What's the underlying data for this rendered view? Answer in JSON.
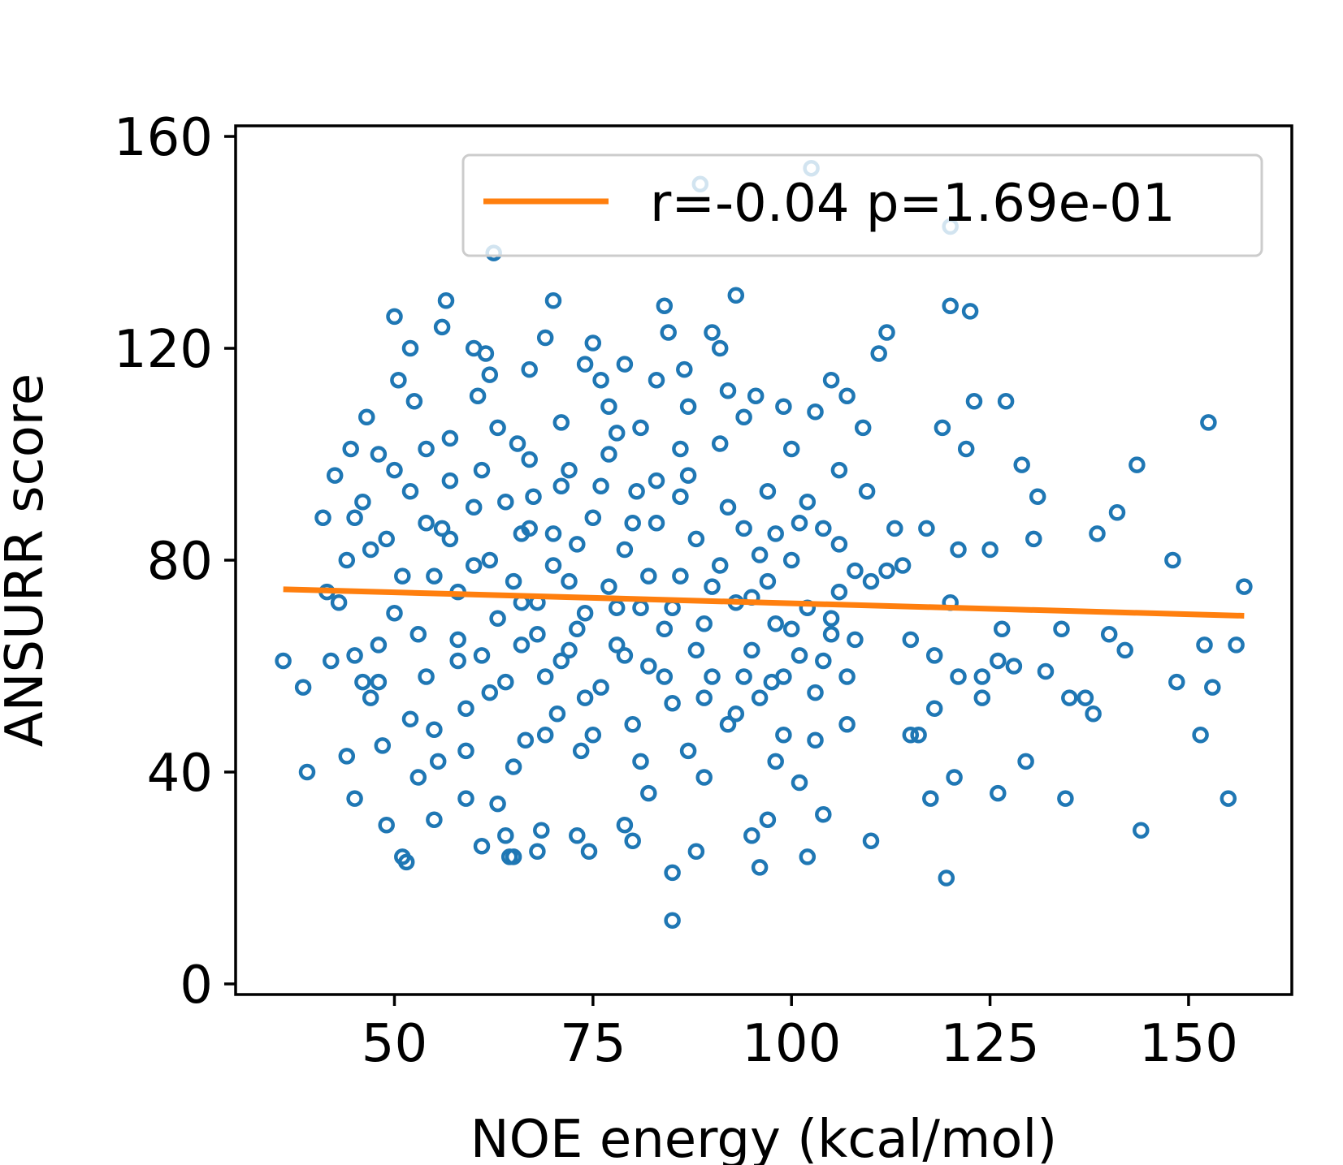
{
  "chart_data": {
    "type": "scatter",
    "title": "",
    "xlabel": "NOE energy (kcal/mol)",
    "ylabel": "ANSURR score",
    "xlim": [
      30,
      163
    ],
    "ylim": [
      -2,
      162
    ],
    "xticks": [
      50,
      75,
      100,
      125,
      150
    ],
    "yticks": [
      0,
      40,
      80,
      120,
      160
    ],
    "grid": false,
    "legend": {
      "placement": "top-right",
      "entries": [
        "r=-0.04 p=1.69e-01"
      ]
    },
    "marker_color": "#1f77b4",
    "line_color": "#ff7f0e",
    "fit_line": {
      "x": [
        36,
        157
      ],
      "y": [
        74.5,
        69.5
      ]
    },
    "points": [
      [
        36,
        61
      ],
      [
        38.5,
        56
      ],
      [
        39,
        40
      ],
      [
        41.5,
        74
      ],
      [
        42,
        61
      ],
      [
        41,
        88
      ],
      [
        42.5,
        96
      ],
      [
        44,
        43
      ],
      [
        45,
        35
      ],
      [
        45,
        62
      ],
      [
        46,
        57
      ],
      [
        44.5,
        101
      ],
      [
        46.5,
        107
      ],
      [
        48,
        100
      ],
      [
        47,
        82
      ],
      [
        48,
        64
      ],
      [
        49,
        30
      ],
      [
        50,
        126
      ],
      [
        50.5,
        114
      ],
      [
        51,
        24
      ],
      [
        51.5,
        23
      ],
      [
        52,
        120
      ],
      [
        52.5,
        110
      ],
      [
        53,
        39
      ],
      [
        54,
        101
      ],
      [
        55,
        31
      ],
      [
        55.5,
        42
      ],
      [
        56,
        124
      ],
      [
        56.5,
        129
      ],
      [
        57,
        95
      ],
      [
        58,
        65
      ],
      [
        59,
        35
      ],
      [
        60,
        120
      ],
      [
        60.5,
        111
      ],
      [
        61,
        26
      ],
      [
        61.5,
        119
      ],
      [
        62,
        115
      ],
      [
        62.5,
        138
      ],
      [
        63,
        34
      ],
      [
        64,
        28
      ],
      [
        64.5,
        24
      ],
      [
        65,
        24
      ],
      [
        65.5,
        102
      ],
      [
        66,
        85
      ],
      [
        67,
        116
      ],
      [
        67.5,
        92
      ],
      [
        68,
        25
      ],
      [
        68.5,
        29
      ],
      [
        69,
        122
      ],
      [
        70,
        129
      ],
      [
        71,
        106
      ],
      [
        72,
        97
      ],
      [
        73,
        28
      ],
      [
        74,
        117
      ],
      [
        74.5,
        25
      ],
      [
        75,
        121
      ],
      [
        76,
        114
      ],
      [
        77,
        109
      ],
      [
        78,
        104
      ],
      [
        79,
        117
      ],
      [
        79,
        30
      ],
      [
        80,
        27
      ],
      [
        80.5,
        93
      ],
      [
        81,
        105
      ],
      [
        82,
        36
      ],
      [
        83,
        114
      ],
      [
        84,
        128
      ],
      [
        84.5,
        123
      ],
      [
        85,
        21
      ],
      [
        85,
        12
      ],
      [
        86,
        101
      ],
      [
        86.5,
        116
      ],
      [
        87,
        109
      ],
      [
        88,
        25
      ],
      [
        89,
        39
      ],
      [
        90,
        123
      ],
      [
        91,
        120
      ],
      [
        92,
        112
      ],
      [
        93,
        130
      ],
      [
        94,
        107
      ],
      [
        95,
        28
      ],
      [
        95.5,
        111
      ],
      [
        96,
        22
      ],
      [
        97,
        31
      ],
      [
        97.5,
        57
      ],
      [
        98,
        42
      ],
      [
        99,
        109
      ],
      [
        100,
        101
      ],
      [
        101,
        38
      ],
      [
        102,
        24
      ],
      [
        103,
        108
      ],
      [
        104,
        32
      ],
      [
        105,
        114
      ],
      [
        106,
        97
      ],
      [
        107,
        111
      ],
      [
        108,
        65
      ],
      [
        109,
        105
      ],
      [
        109.5,
        93
      ],
      [
        110,
        27
      ],
      [
        111,
        119
      ],
      [
        112,
        123
      ],
      [
        113,
        86
      ],
      [
        114,
        79
      ],
      [
        115,
        65
      ],
      [
        116,
        47
      ],
      [
        117,
        86
      ],
      [
        117.5,
        35
      ],
      [
        118,
        52
      ],
      [
        119,
        105
      ],
      [
        119.5,
        20
      ],
      [
        120,
        72
      ],
      [
        120.5,
        39
      ],
      [
        121,
        82
      ],
      [
        122,
        101
      ],
      [
        122.5,
        127
      ],
      [
        123,
        110
      ],
      [
        124,
        54
      ],
      [
        125,
        82
      ],
      [
        126,
        36
      ],
      [
        126.5,
        67
      ],
      [
        127,
        110
      ],
      [
        128,
        60
      ],
      [
        129,
        98
      ],
      [
        129.5,
        42
      ],
      [
        130.5,
        84
      ],
      [
        131,
        92
      ],
      [
        132,
        59
      ],
      [
        134,
        67
      ],
      [
        134.5,
        35
      ],
      [
        135,
        54
      ],
      [
        137,
        54
      ],
      [
        138,
        51
      ],
      [
        138.5,
        85
      ],
      [
        140,
        66
      ],
      [
        141,
        89
      ],
      [
        142,
        63
      ],
      [
        143.5,
        98
      ],
      [
        144,
        29
      ],
      [
        148,
        80
      ],
      [
        148.5,
        57
      ],
      [
        151.5,
        47
      ],
      [
        152,
        64
      ],
      [
        152.5,
        106
      ],
      [
        153,
        56
      ],
      [
        155,
        35
      ],
      [
        156,
        64
      ],
      [
        157,
        75
      ],
      [
        88.5,
        151
      ],
      [
        102.5,
        154
      ],
      [
        120,
        143
      ],
      [
        120,
        128
      ],
      [
        98,
        85
      ],
      [
        44,
        80
      ],
      [
        43,
        72
      ],
      [
        45,
        88
      ],
      [
        47,
        54
      ],
      [
        48.5,
        45
      ],
      [
        50,
        70
      ],
      [
        51,
        77
      ],
      [
        53,
        66
      ],
      [
        54,
        58
      ],
      [
        55,
        48
      ],
      [
        57,
        84
      ],
      [
        58,
        74
      ],
      [
        59,
        52
      ],
      [
        60,
        90
      ],
      [
        61,
        62
      ],
      [
        62,
        80
      ],
      [
        63,
        69
      ],
      [
        64,
        57
      ],
      [
        65,
        76
      ],
      [
        66,
        64
      ],
      [
        66.5,
        46
      ],
      [
        67,
        86
      ],
      [
        68,
        72
      ],
      [
        69,
        58
      ],
      [
        70,
        79
      ],
      [
        70.5,
        51
      ],
      [
        71,
        94
      ],
      [
        72,
        63
      ],
      [
        73,
        83
      ],
      [
        73.5,
        44
      ],
      [
        74,
        70
      ],
      [
        75,
        88
      ],
      [
        76,
        56
      ],
      [
        77,
        75
      ],
      [
        78,
        64
      ],
      [
        79,
        82
      ],
      [
        80,
        49
      ],
      [
        81,
        71
      ],
      [
        82,
        60
      ],
      [
        83,
        87
      ],
      [
        84,
        67
      ],
      [
        85,
        53
      ],
      [
        86,
        77
      ],
      [
        87,
        44
      ],
      [
        88,
        84
      ],
      [
        89,
        68
      ],
      [
        90,
        58
      ],
      [
        91,
        79
      ],
      [
        92,
        49
      ],
      [
        93,
        72
      ],
      [
        94,
        86
      ],
      [
        95,
        63
      ],
      [
        96,
        54
      ],
      [
        97,
        76
      ],
      [
        98,
        68
      ],
      [
        99,
        47
      ],
      [
        100,
        80
      ],
      [
        101,
        62
      ],
      [
        102,
        71
      ],
      [
        103,
        55
      ],
      [
        104,
        86
      ],
      [
        105,
        66
      ],
      [
        106,
        74
      ],
      [
        107,
        49
      ],
      [
        108,
        78
      ],
      [
        46,
        91
      ],
      [
        49,
        84
      ],
      [
        52,
        93
      ],
      [
        55,
        77
      ],
      [
        56,
        86
      ],
      [
        58,
        61
      ],
      [
        60,
        79
      ],
      [
        62,
        55
      ],
      [
        64,
        91
      ],
      [
        66,
        72
      ],
      [
        68,
        66
      ],
      [
        70,
        85
      ],
      [
        72,
        76
      ],
      [
        74,
        54
      ],
      [
        76,
        94
      ],
      [
        78,
        71
      ],
      [
        80,
        87
      ],
      [
        82,
        77
      ],
      [
        84,
        58
      ],
      [
        86,
        92
      ],
      [
        88,
        63
      ],
      [
        90,
        75
      ],
      [
        92,
        90
      ],
      [
        94,
        58
      ],
      [
        96,
        81
      ],
      [
        100,
        67
      ],
      [
        102,
        91
      ],
      [
        104,
        61
      ],
      [
        106,
        83
      ],
      [
        48,
        57
      ],
      [
        50,
        97
      ],
      [
        52,
        50
      ],
      [
        54,
        87
      ],
      [
        57,
        103
      ],
      [
        59,
        44
      ],
      [
        61,
        97
      ],
      [
        63,
        105
      ],
      [
        65,
        41
      ],
      [
        67,
        99
      ],
      [
        69,
        47
      ],
      [
        71,
        61
      ],
      [
        73,
        67
      ],
      [
        75,
        47
      ],
      [
        77,
        100
      ],
      [
        79,
        62
      ],
      [
        81,
        42
      ],
      [
        83,
        95
      ],
      [
        85,
        71
      ],
      [
        87,
        96
      ],
      [
        89,
        54
      ],
      [
        91,
        102
      ],
      [
        93,
        51
      ],
      [
        95,
        73
      ],
      [
        97,
        93
      ],
      [
        99,
        58
      ],
      [
        101,
        87
      ],
      [
        103,
        46
      ],
      [
        105,
        69
      ],
      [
        107,
        58
      ],
      [
        110,
        76
      ],
      [
        112,
        78
      ],
      [
        115,
        47
      ],
      [
        118,
        62
      ],
      [
        121,
        58
      ],
      [
        124,
        58
      ],
      [
        126,
        61
      ]
    ]
  }
}
